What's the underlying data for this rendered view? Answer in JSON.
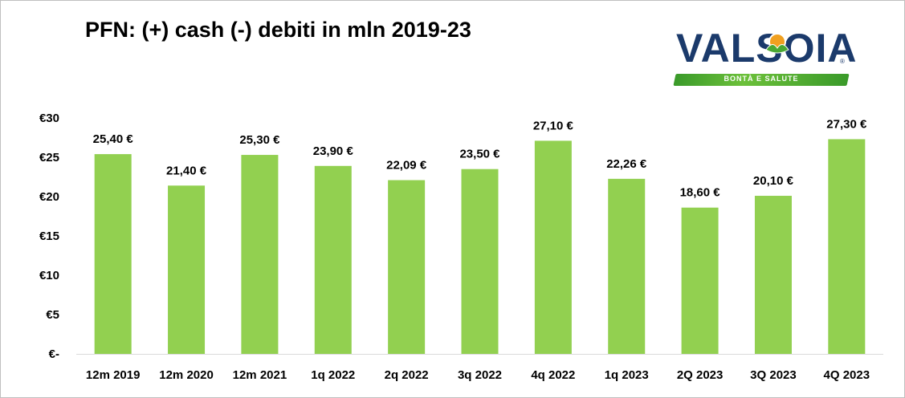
{
  "chart_data": {
    "type": "bar",
    "title": "PFN: (+) cash (-) debiti in mln 2019-23",
    "categories": [
      "12m 2019",
      "12m 2020",
      "12m 2021",
      "1q 2022",
      "2q 2022",
      "3q 2022",
      "4q 2022",
      "1q 2023",
      "2Q 2023",
      "3Q 2023",
      "4Q 2023"
    ],
    "values": [
      25.4,
      21.4,
      25.3,
      23.9,
      22.09,
      23.5,
      27.1,
      22.26,
      18.6,
      20.1,
      27.3
    ],
    "data_labels": [
      "25,40 €",
      "21,40 €",
      "25,30 €",
      "23,90 €",
      "22,09 €",
      "23,50 €",
      "27,10 €",
      "22,26 €",
      "18,60 €",
      "20,10 €",
      "27,30 €"
    ],
    "y_tick_labels": [
      "€-",
      "€5",
      "€10",
      "€15",
      "€20",
      "€25",
      "€30"
    ],
    "y_ticks": [
      0,
      5,
      10,
      15,
      20,
      25,
      30
    ],
    "ylim": [
      0,
      30
    ],
    "bar_color": "#92d050",
    "grid": false,
    "legend": "none"
  },
  "logo": {
    "wordmark": "VALSOIA",
    "tagline": "BONTÀ E SALUTE",
    "registered": "®",
    "brand_color": "#1b3a6b",
    "band_color": "#4aa832"
  }
}
